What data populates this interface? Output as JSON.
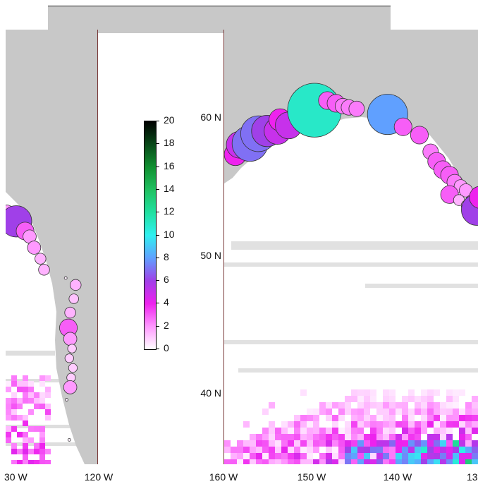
{
  "panels": {
    "left": {
      "x_tick_labels": [
        "30 W",
        "120 W"
      ]
    },
    "right": {
      "y_tick_labels": [
        "60 N",
        "50 N",
        "40 N"
      ],
      "x_tick_labels": [
        "160 W",
        "150 W",
        "140 W",
        "13"
      ]
    }
  },
  "colorbar": {
    "ticks": [
      "20",
      "18",
      "16",
      "14",
      "12",
      "10",
      "8",
      "6",
      "4",
      "2",
      "0"
    ],
    "range": [
      0,
      20
    ],
    "colors": [
      "#ffffff",
      "#ff99ff",
      "#ee22ee",
      "#a040e8",
      "#60a0ff",
      "#30f0f0",
      "#20e0a0",
      "#20c060",
      "#109030",
      "#084818",
      "#000000"
    ]
  },
  "map": {
    "land_color": "#c8c8c8",
    "water_color": "#ffffff",
    "projection": "lon-lat grid",
    "right_extent_lon": [
      -160,
      -130
    ],
    "right_extent_lat": [
      35,
      63
    ],
    "circles": {
      "right": [
        {
          "lon": -158.7,
          "lat": 57.3,
          "value": 4
        },
        {
          "lon": -158.2,
          "lat": 58.0,
          "value": 5
        },
        {
          "lon": -157.0,
          "lat": 58.1,
          "value": 7
        },
        {
          "lon": -156.0,
          "lat": 58.8,
          "value": 7
        },
        {
          "lon": -155.0,
          "lat": 59.0,
          "value": 6
        },
        {
          "lon": -153.8,
          "lat": 59.0,
          "value": 5
        },
        {
          "lon": -153.5,
          "lat": 59.8,
          "value": 4
        },
        {
          "lon": -152.5,
          "lat": 59.4,
          "value": 5
        },
        {
          "lon": -151.6,
          "lat": 60.4,
          "value": 3
        },
        {
          "lon": -149.5,
          "lat": 60.5,
          "value": 11
        },
        {
          "lon": -148.0,
          "lat": 61.2,
          "value": 3
        },
        {
          "lon": -147.0,
          "lat": 61.0,
          "value": 3
        },
        {
          "lon": -146.2,
          "lat": 60.8,
          "value": 2.5
        },
        {
          "lon": -145.5,
          "lat": 60.7,
          "value": 2.5
        },
        {
          "lon": -144.6,
          "lat": 60.6,
          "value": 2.5
        },
        {
          "lon": -141.0,
          "lat": 60.2,
          "value": 8
        },
        {
          "lon": -139.2,
          "lat": 59.3,
          "value": 3
        },
        {
          "lon": -137.3,
          "lat": 58.7,
          "value": 3
        },
        {
          "lon": -136.0,
          "lat": 57.5,
          "value": 2.5
        },
        {
          "lon": -135.3,
          "lat": 56.8,
          "value": 3
        },
        {
          "lon": -134.6,
          "lat": 56.2,
          "value": 3
        },
        {
          "lon": -133.8,
          "lat": 55.8,
          "value": 3
        },
        {
          "lon": -133.2,
          "lat": 55.3,
          "value": 2.5
        },
        {
          "lon": -132.5,
          "lat": 55.0,
          "value": 2
        },
        {
          "lon": -131.9,
          "lat": 54.7,
          "value": 2
        },
        {
          "lon": -133.8,
          "lat": 54.4,
          "value": 3
        },
        {
          "lon": -132.7,
          "lat": 54.0,
          "value": 1.5
        },
        {
          "lon": -131.8,
          "lat": 53.6,
          "value": 1.5
        },
        {
          "lon": -131.2,
          "lat": 53.9,
          "value": 2
        },
        {
          "lon": -130.6,
          "lat": 53.3,
          "value": 6
        },
        {
          "lon": -130.2,
          "lat": 54.2,
          "value": 4
        }
      ],
      "left": [
        {
          "lon": -130.0,
          "lat": 52.0,
          "value": 2
        },
        {
          "lon": -129.0,
          "lat": 51.3,
          "value": 6
        },
        {
          "lon": -128.0,
          "lat": 50.6,
          "value": 3
        },
        {
          "lon": -127.5,
          "lat": 50.2,
          "value": 2
        },
        {
          "lon": -127.0,
          "lat": 49.4,
          "value": 2
        },
        {
          "lon": -126.3,
          "lat": 48.6,
          "value": 1.5
        },
        {
          "lon": -125.9,
          "lat": 47.8,
          "value": 1.5
        },
        {
          "lon": -123.5,
          "lat": 47.2,
          "value": 0.3
        },
        {
          "lon": -122.4,
          "lat": 46.7,
          "value": 1.5
        },
        {
          "lon": -122.6,
          "lat": 45.7,
          "value": 1.2
        },
        {
          "lon": -123.0,
          "lat": 44.7,
          "value": 1.5
        },
        {
          "lon": -123.2,
          "lat": 43.6,
          "value": 3
        },
        {
          "lon": -123.0,
          "lat": 42.8,
          "value": 2
        },
        {
          "lon": -122.8,
          "lat": 42.1,
          "value": 1
        },
        {
          "lon": -123.1,
          "lat": 41.4,
          "value": 1
        },
        {
          "lon": -122.7,
          "lat": 40.7,
          "value": 1
        },
        {
          "lon": -122.9,
          "lat": 40.0,
          "value": 1
        },
        {
          "lon": -123.0,
          "lat": 39.3,
          "value": 2
        },
        {
          "lon": -123.4,
          "lat": 38.4,
          "value": 0.3
        },
        {
          "lon": -123.1,
          "lat": 35.5,
          "value": 0.3
        },
        {
          "lon": -120.8,
          "lat": 32.3,
          "value": 0.3
        }
      ]
    }
  }
}
